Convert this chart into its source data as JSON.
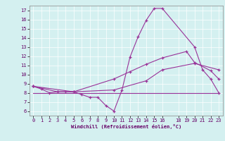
{
  "xlabel": "Windchill (Refroidissement éolien,°C)",
  "xlim": [
    -0.5,
    23.5
  ],
  "ylim": [
    5.5,
    17.5
  ],
  "yticks": [
    6,
    7,
    8,
    9,
    10,
    11,
    12,
    13,
    14,
    15,
    16,
    17
  ],
  "xticks": [
    0,
    1,
    2,
    3,
    4,
    5,
    6,
    7,
    8,
    9,
    10,
    11,
    12,
    13,
    14,
    15,
    16,
    18,
    19,
    20,
    21,
    22,
    23
  ],
  "bg_color": "#d4f0f0",
  "line_color": "#993399",
  "lines": [
    {
      "x": [
        0,
        1,
        2,
        3,
        4,
        5,
        6,
        7,
        8,
        9,
        10,
        11,
        12,
        13,
        14,
        15,
        16,
        20,
        21,
        22,
        23
      ],
      "y": [
        8.7,
        8.4,
        8.0,
        8.1,
        8.1,
        8.1,
        7.8,
        7.5,
        7.5,
        6.6,
        6.0,
        8.3,
        11.9,
        14.1,
        15.9,
        17.2,
        17.2,
        13.0,
        10.5,
        9.5,
        8.0
      ],
      "markers": true
    },
    {
      "x": [
        0,
        3,
        5,
        10,
        12,
        14,
        16,
        19,
        20,
        22,
        23
      ],
      "y": [
        8.7,
        8.1,
        8.1,
        9.5,
        10.3,
        11.1,
        11.8,
        12.5,
        11.3,
        10.4,
        9.5
      ],
      "markers": true
    },
    {
      "x": [
        0,
        5,
        10,
        14,
        16,
        20,
        23
      ],
      "y": [
        8.7,
        8.1,
        8.3,
        9.3,
        10.5,
        11.2,
        10.5
      ],
      "markers": true
    },
    {
      "x": [
        0,
        23
      ],
      "y": [
        8.0,
        8.0
      ],
      "markers": false
    }
  ]
}
